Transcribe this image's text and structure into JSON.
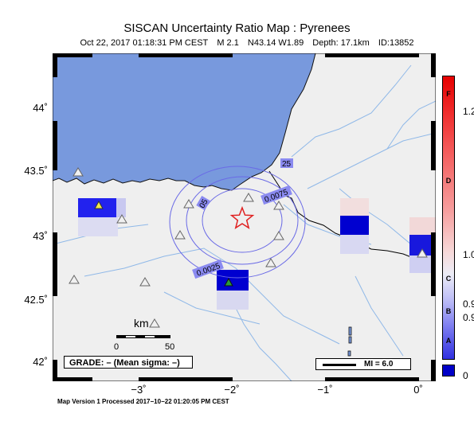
{
  "title": "SISCAN Uncertainty Ratio Map : Pyrenees",
  "subtitle": {
    "datetime": "Oct 22, 2017 01:18:31 PM CEST",
    "magnitude": "M 2.1",
    "location": "N43.14 W1.89",
    "depth": "Depth: 17.1km",
    "id": "ID:13852"
  },
  "y_axis_labels": [
    "44˚",
    "43.5˚",
    "43˚",
    "42.5˚",
    "42˚"
  ],
  "x_axis_labels": [
    "−3˚",
    "−2˚",
    "−1˚",
    "0˚"
  ],
  "scale_bar": {
    "unit": "km",
    "start": "0",
    "end": "50"
  },
  "grade_box": "GRADE: – (Mean sigma: –)",
  "mi_legend": "MI = 6.0",
  "contour_labels": [
    "0.0025",
    "0.0075",
    "25",
    "05"
  ],
  "colorbar": {
    "grades": [
      "F",
      "D",
      "C",
      "B",
      "A"
    ],
    "values": [
      "1.2",
      "1.0",
      "0.9",
      "0.9",
      "0"
    ],
    "colors": {
      "high": "#e60000",
      "mid": "#f6d8d8",
      "low": "#3030e0",
      "bottom": "#0000c8"
    }
  },
  "colors": {
    "sea": "#7899dd",
    "land": "#efefef",
    "rivers": "#8fb8e8",
    "epicenter": "#e02020",
    "station_highlight": "#2a9a3a"
  },
  "footer": "Map Version 1 Processed 2017−10−22 01:20:05 PM CEST"
}
